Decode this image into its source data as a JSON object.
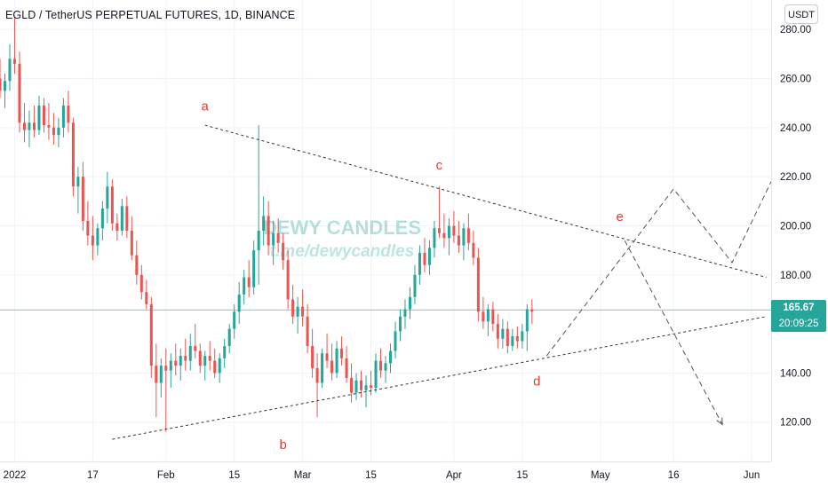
{
  "header": {
    "title": "EGLD / TetherUS PERPETUAL FUTURES, 1D, BINANCE",
    "currency_button": "USDT"
  },
  "price_label": {
    "last_price": "165.67",
    "countdown": "20:09:25"
  },
  "watermark": {
    "brand": "DEWY CANDLES",
    "handle": "t.me/dewycandles"
  },
  "colors": {
    "up": "#26a69a",
    "down": "#ef5350",
    "wave_label": "#e53935",
    "trendline": "#333333",
    "watermark": "#26a69a"
  },
  "chart_data": {
    "type": "candlestick",
    "title": "EGLD / TetherUS PERPETUAL FUTURES, 1D, BINANCE",
    "y_axis": {
      "range": [
        104,
        292
      ],
      "ticks": [
        "280.00",
        "260.00",
        "240.00",
        "220.00",
        "200.00",
        "180.00",
        "140.00",
        "120.00"
      ],
      "tick_values": [
        280,
        260,
        240,
        220,
        200,
        180,
        140,
        120
      ]
    },
    "x_axis": {
      "range": [
        "2021-12-29",
        "2022-06-05"
      ],
      "ticks": [
        {
          "label": "2022",
          "date": "2022-01-01"
        },
        {
          "label": "17",
          "date": "2022-01-17"
        },
        {
          "label": "Feb",
          "date": "2022-02-01"
        },
        {
          "label": "15",
          "date": "2022-02-15"
        },
        {
          "label": "Mar",
          "date": "2022-03-01"
        },
        {
          "label": "15",
          "date": "2022-03-15"
        },
        {
          "label": "Apr",
          "date": "2022-04-01"
        },
        {
          "label": "15",
          "date": "2022-04-15"
        },
        {
          "label": "May",
          "date": "2022-05-01"
        },
        {
          "label": "16",
          "date": "2022-05-16"
        },
        {
          "label": "Jun",
          "date": "2022-06-01"
        }
      ]
    },
    "candles_start": "2021-12-29",
    "candles": [
      {
        "o": 260,
        "h": 268,
        "l": 252,
        "c": 255
      },
      {
        "o": 255,
        "h": 262,
        "l": 248,
        "c": 259
      },
      {
        "o": 259,
        "h": 274,
        "l": 255,
        "c": 268
      },
      {
        "o": 268,
        "h": 285,
        "l": 262,
        "c": 266
      },
      {
        "o": 266,
        "h": 271,
        "l": 238,
        "c": 242
      },
      {
        "o": 242,
        "h": 250,
        "l": 234,
        "c": 239
      },
      {
        "o": 239,
        "h": 247,
        "l": 232,
        "c": 242
      },
      {
        "o": 242,
        "h": 249,
        "l": 236,
        "c": 239
      },
      {
        "o": 239,
        "h": 253,
        "l": 237,
        "c": 249
      },
      {
        "o": 249,
        "h": 252,
        "l": 238,
        "c": 241
      },
      {
        "o": 241,
        "h": 250,
        "l": 235,
        "c": 240
      },
      {
        "o": 240,
        "h": 246,
        "l": 233,
        "c": 237
      },
      {
        "o": 237,
        "h": 244,
        "l": 232,
        "c": 240
      },
      {
        "o": 240,
        "h": 252,
        "l": 236,
        "c": 249
      },
      {
        "o": 249,
        "h": 255,
        "l": 238,
        "c": 242
      },
      {
        "o": 242,
        "h": 244,
        "l": 212,
        "c": 216
      },
      {
        "o": 216,
        "h": 224,
        "l": 205,
        "c": 220
      },
      {
        "o": 220,
        "h": 226,
        "l": 198,
        "c": 202
      },
      {
        "o": 202,
        "h": 210,
        "l": 192,
        "c": 196
      },
      {
        "o": 196,
        "h": 204,
        "l": 186,
        "c": 192
      },
      {
        "o": 192,
        "h": 201,
        "l": 188,
        "c": 199
      },
      {
        "o": 199,
        "h": 210,
        "l": 194,
        "c": 207
      },
      {
        "o": 207,
        "h": 222,
        "l": 201,
        "c": 216
      },
      {
        "o": 216,
        "h": 219,
        "l": 198,
        "c": 201
      },
      {
        "o": 201,
        "h": 205,
        "l": 194,
        "c": 198
      },
      {
        "o": 198,
        "h": 211,
        "l": 196,
        "c": 208
      },
      {
        "o": 208,
        "h": 212,
        "l": 195,
        "c": 198
      },
      {
        "o": 198,
        "h": 204,
        "l": 186,
        "c": 188
      },
      {
        "o": 188,
        "h": 194,
        "l": 176,
        "c": 180
      },
      {
        "o": 180,
        "h": 184,
        "l": 170,
        "c": 173
      },
      {
        "o": 173,
        "h": 178,
        "l": 166,
        "c": 168
      },
      {
        "o": 168,
        "h": 171,
        "l": 138,
        "c": 143
      },
      {
        "o": 143,
        "h": 152,
        "l": 122,
        "c": 136
      },
      {
        "o": 136,
        "h": 146,
        "l": 130,
        "c": 143
      },
      {
        "o": 143,
        "h": 150,
        "l": 116,
        "c": 141
      },
      {
        "o": 141,
        "h": 148,
        "l": 134,
        "c": 145
      },
      {
        "o": 145,
        "h": 152,
        "l": 139,
        "c": 143
      },
      {
        "o": 143,
        "h": 150,
        "l": 137,
        "c": 147
      },
      {
        "o": 147,
        "h": 154,
        "l": 141,
        "c": 145
      },
      {
        "o": 145,
        "h": 156,
        "l": 141,
        "c": 151
      },
      {
        "o": 151,
        "h": 160,
        "l": 146,
        "c": 149
      },
      {
        "o": 149,
        "h": 152,
        "l": 140,
        "c": 143
      },
      {
        "o": 143,
        "h": 149,
        "l": 137,
        "c": 147
      },
      {
        "o": 147,
        "h": 153,
        "l": 141,
        "c": 145
      },
      {
        "o": 145,
        "h": 150,
        "l": 138,
        "c": 140
      },
      {
        "o": 140,
        "h": 148,
        "l": 136,
        "c": 146
      },
      {
        "o": 146,
        "h": 154,
        "l": 142,
        "c": 151
      },
      {
        "o": 151,
        "h": 160,
        "l": 148,
        "c": 158
      },
      {
        "o": 158,
        "h": 168,
        "l": 154,
        "c": 165
      },
      {
        "o": 165,
        "h": 177,
        "l": 160,
        "c": 172
      },
      {
        "o": 172,
        "h": 182,
        "l": 168,
        "c": 179
      },
      {
        "o": 179,
        "h": 186,
        "l": 171,
        "c": 175
      },
      {
        "o": 175,
        "h": 194,
        "l": 172,
        "c": 190
      },
      {
        "o": 190,
        "h": 241,
        "l": 176,
        "c": 198
      },
      {
        "o": 198,
        "h": 212,
        "l": 192,
        "c": 204
      },
      {
        "o": 204,
        "h": 210,
        "l": 188,
        "c": 192
      },
      {
        "o": 192,
        "h": 202,
        "l": 184,
        "c": 197
      },
      {
        "o": 197,
        "h": 203,
        "l": 189,
        "c": 193
      },
      {
        "o": 193,
        "h": 197,
        "l": 182,
        "c": 186
      },
      {
        "o": 186,
        "h": 190,
        "l": 166,
        "c": 170
      },
      {
        "o": 170,
        "h": 176,
        "l": 160,
        "c": 163
      },
      {
        "o": 163,
        "h": 171,
        "l": 156,
        "c": 167
      },
      {
        "o": 167,
        "h": 174,
        "l": 159,
        "c": 163
      },
      {
        "o": 163,
        "h": 168,
        "l": 148,
        "c": 151
      },
      {
        "o": 151,
        "h": 158,
        "l": 138,
        "c": 142
      },
      {
        "o": 142,
        "h": 148,
        "l": 122,
        "c": 136
      },
      {
        "o": 136,
        "h": 150,
        "l": 134,
        "c": 148
      },
      {
        "o": 148,
        "h": 156,
        "l": 142,
        "c": 145
      },
      {
        "o": 145,
        "h": 152,
        "l": 137,
        "c": 140
      },
      {
        "o": 140,
        "h": 153,
        "l": 138,
        "c": 150
      },
      {
        "o": 150,
        "h": 155,
        "l": 143,
        "c": 146
      },
      {
        "o": 146,
        "h": 151,
        "l": 136,
        "c": 138
      },
      {
        "o": 138,
        "h": 144,
        "l": 128,
        "c": 132
      },
      {
        "o": 132,
        "h": 140,
        "l": 129,
        "c": 137
      },
      {
        "o": 137,
        "h": 141,
        "l": 130,
        "c": 133
      },
      {
        "o": 133,
        "h": 139,
        "l": 126,
        "c": 135
      },
      {
        "o": 135,
        "h": 141,
        "l": 131,
        "c": 134
      },
      {
        "o": 134,
        "h": 148,
        "l": 132,
        "c": 145
      },
      {
        "o": 145,
        "h": 150,
        "l": 138,
        "c": 141
      },
      {
        "o": 141,
        "h": 147,
        "l": 136,
        "c": 144
      },
      {
        "o": 144,
        "h": 152,
        "l": 140,
        "c": 149
      },
      {
        "o": 149,
        "h": 161,
        "l": 146,
        "c": 157
      },
      {
        "o": 157,
        "h": 166,
        "l": 153,
        "c": 163
      },
      {
        "o": 163,
        "h": 170,
        "l": 158,
        "c": 166
      },
      {
        "o": 166,
        "h": 175,
        "l": 162,
        "c": 171
      },
      {
        "o": 171,
        "h": 184,
        "l": 168,
        "c": 180
      },
      {
        "o": 180,
        "h": 192,
        "l": 176,
        "c": 189
      },
      {
        "o": 189,
        "h": 195,
        "l": 181,
        "c": 184
      },
      {
        "o": 184,
        "h": 194,
        "l": 180,
        "c": 191
      },
      {
        "o": 191,
        "h": 202,
        "l": 187,
        "c": 199
      },
      {
        "o": 199,
        "h": 216,
        "l": 195,
        "c": 197
      },
      {
        "o": 197,
        "h": 205,
        "l": 191,
        "c": 195
      },
      {
        "o": 195,
        "h": 203,
        "l": 188,
        "c": 200
      },
      {
        "o": 200,
        "h": 206,
        "l": 193,
        "c": 196
      },
      {
        "o": 196,
        "h": 202,
        "l": 189,
        "c": 192
      },
      {
        "o": 192,
        "h": 201,
        "l": 186,
        "c": 199
      },
      {
        "o": 199,
        "h": 205,
        "l": 190,
        "c": 193
      },
      {
        "o": 193,
        "h": 198,
        "l": 184,
        "c": 187
      },
      {
        "o": 187,
        "h": 191,
        "l": 161,
        "c": 165
      },
      {
        "o": 165,
        "h": 171,
        "l": 158,
        "c": 161
      },
      {
        "o": 161,
        "h": 168,
        "l": 155,
        "c": 166
      },
      {
        "o": 166,
        "h": 169,
        "l": 157,
        "c": 160
      },
      {
        "o": 160,
        "h": 164,
        "l": 150,
        "c": 154
      },
      {
        "o": 154,
        "h": 162,
        "l": 150,
        "c": 158
      },
      {
        "o": 158,
        "h": 161,
        "l": 148,
        "c": 151
      },
      {
        "o": 151,
        "h": 158,
        "l": 149,
        "c": 155
      },
      {
        "o": 155,
        "h": 159,
        "l": 150,
        "c": 153
      },
      {
        "o": 153,
        "h": 160,
        "l": 150,
        "c": 157
      },
      {
        "o": 157,
        "h": 168,
        "l": 149,
        "c": 166
      },
      {
        "o": 166,
        "h": 170,
        "l": 160,
        "c": 165
      }
    ],
    "last_price": 165.67,
    "annotations": {
      "wave_labels": [
        {
          "text": "a",
          "date": "2022-02-09",
          "price": 247
        },
        {
          "text": "b",
          "date": "2022-02-25",
          "price": 109
        },
        {
          "text": "c",
          "date": "2022-03-29",
          "price": 223
        },
        {
          "text": "d",
          "date": "2022-04-18",
          "price": 135
        },
        {
          "text": "e",
          "date": "2022-05-05",
          "price": 202
        }
      ],
      "trendlines": [
        {
          "from": {
            "date": "2022-02-09",
            "price": 241
          },
          "to": {
            "date": "2022-06-04",
            "price": 179
          }
        },
        {
          "from": {
            "date": "2022-01-21",
            "price": 113
          },
          "to": {
            "date": "2022-06-04",
            "price": 163
          }
        }
      ],
      "projection_path": [
        {
          "date": "2022-04-20",
          "price": 147
        },
        {
          "date": "2022-05-08",
          "price": 194
        },
        {
          "date": "2022-05-16",
          "price": 215
        },
        {
          "date": "2022-05-28",
          "price": 185
        },
        {
          "date": "2022-06-05",
          "price": 218
        }
      ],
      "projection_alt": [
        {
          "date": "2022-05-06",
          "price": 194
        },
        {
          "date": "2022-05-26",
          "price": 119
        }
      ]
    }
  }
}
